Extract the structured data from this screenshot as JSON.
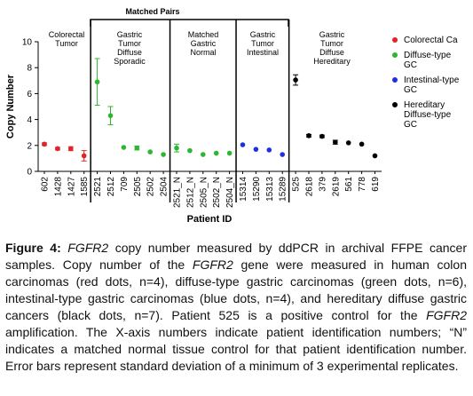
{
  "chart_data": {
    "type": "scatter",
    "bracket_label": "Matched Pairs",
    "y_label": "Copy Number",
    "x_label": "Patient ID",
    "groups": [
      {
        "lines": [
          "Colorectal",
          "Tumor"
        ]
      },
      {
        "lines": [
          "Gastric",
          "Tumor",
          "Diffuse",
          "Sporadic"
        ]
      },
      {
        "lines": [
          "Matched",
          "Gastric",
          "Normal"
        ]
      },
      {
        "lines": [
          "Gastric",
          "Tumor",
          "Intestinal"
        ]
      },
      {
        "lines": [
          "Gastric",
          "Tumor",
          "Diffuse",
          "Hereditary"
        ]
      }
    ],
    "categories": [
      "602",
      "1428",
      "1427",
      "1585",
      "2521",
      "2512",
      "709",
      "2505",
      "2502",
      "2504",
      "2521_N",
      "2512_N",
      "2505_N",
      "2502_N",
      "2504_N",
      "15314",
      "15290",
      "15313",
      "15289",
      "525",
      "2618",
      "379",
      "2619",
      "561",
      "778",
      "619"
    ],
    "ylim": [
      0,
      10
    ],
    "yticks": [
      0,
      2,
      4,
      6,
      8,
      10
    ],
    "series": [
      {
        "name": "Colorectal Ca",
        "color": "#e32227",
        "values": [
          2.1,
          1.75,
          1.75,
          1.2,
          null,
          null,
          null,
          null,
          null,
          null,
          null,
          null,
          null,
          null,
          null,
          null,
          null,
          null,
          null,
          null,
          null,
          null,
          null,
          null,
          null,
          null
        ],
        "errors": [
          0.1,
          0.1,
          0.15,
          0.4,
          null,
          null,
          null,
          null,
          null,
          null,
          null,
          null,
          null,
          null,
          null,
          null,
          null,
          null,
          null,
          null,
          null,
          null,
          null,
          null,
          null,
          null
        ]
      },
      {
        "name": "Diffuse-type GC",
        "color": "#2fb52f",
        "values": [
          null,
          null,
          null,
          null,
          6.9,
          4.3,
          1.85,
          1.8,
          1.5,
          1.3,
          1.8,
          1.6,
          1.3,
          1.4,
          1.4,
          null,
          null,
          null,
          null,
          null,
          null,
          null,
          null,
          null,
          null,
          null
        ],
        "errors": [
          null,
          null,
          null,
          null,
          1.8,
          0.7,
          null,
          0.15,
          null,
          null,
          0.3,
          null,
          null,
          null,
          null,
          null,
          null,
          null,
          null,
          null,
          null,
          null,
          null,
          null,
          null,
          null
        ]
      },
      {
        "name": "Intestinal-type GC",
        "color": "#1f2fe0",
        "values": [
          null,
          null,
          null,
          null,
          null,
          null,
          null,
          null,
          null,
          null,
          null,
          null,
          null,
          null,
          null,
          2.05,
          1.7,
          1.65,
          1.3,
          null,
          null,
          null,
          null,
          null,
          null,
          null
        ],
        "errors": [
          null,
          null,
          null,
          null,
          null,
          null,
          null,
          null,
          null,
          null,
          null,
          null,
          null,
          null,
          null,
          null,
          null,
          null,
          null,
          null,
          null,
          null,
          null,
          null,
          null,
          null
        ]
      },
      {
        "name": "Hereditary Diffuse-type GC",
        "color": "#000000",
        "values": [
          null,
          null,
          null,
          null,
          null,
          null,
          null,
          null,
          null,
          null,
          null,
          null,
          null,
          null,
          null,
          null,
          null,
          null,
          null,
          7.05,
          2.75,
          2.7,
          2.25,
          2.2,
          2.1,
          1.2
        ],
        "errors": [
          null,
          null,
          null,
          null,
          null,
          null,
          null,
          null,
          null,
          null,
          null,
          null,
          null,
          null,
          null,
          null,
          null,
          null,
          null,
          0.4,
          0.1,
          0.1,
          0.15,
          null,
          null,
          null
        ]
      }
    ]
  },
  "caption": {
    "label": "Figure 4:",
    "runs": [
      {
        "text": " "
      },
      {
        "text": "FGFR2",
        "italic": true
      },
      {
        "text": " copy number measured by ddPCR in archival FFPE cancer samples. Copy number of the "
      },
      {
        "text": "FGFR2",
        "italic": true
      },
      {
        "text": " gene were measured in human colon carcinomas (red dots, n=4), diffuse-type gastric carcinomas (green dots, n=6), intestinal-type gastric carcinomas (blue dots, n=4), and hereditary diffuse gastric cancers (black dots, n=7). Patient 525 is a positive control for the "
      },
      {
        "text": "FGFR2",
        "italic": true
      },
      {
        "text": " amplification. The X-axis numbers indicate patient identification numbers; “N” indicates a matched normal tissue control for that patient identification number. Error bars represent standard deviation of a minimum of 3 experimental replicates."
      }
    ]
  }
}
